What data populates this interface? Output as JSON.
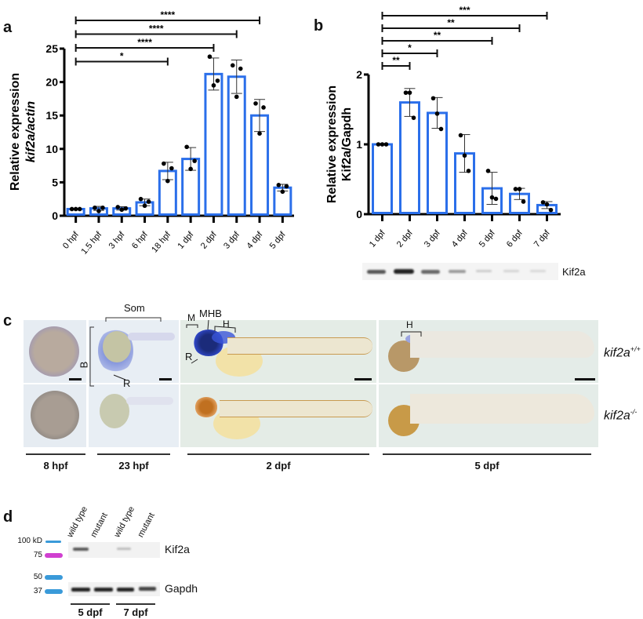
{
  "figure": {
    "panel_a": {
      "letter": "a"
    },
    "panel_b": {
      "letter": "b",
      "blot_label": "Kif2a"
    },
    "panel_c": {
      "letter": "c",
      "annotations": {
        "som": "Som",
        "b": "B",
        "r1": "R",
        "mhb": "MHB",
        "m": "M",
        "h1": "H",
        "r2": "R",
        "h2": "H"
      },
      "genotypes": {
        "wt_base": "kif2a",
        "wt_sup": "+/+",
        "mut_base": "kif2a",
        "mut_sup": "-/-"
      },
      "ages": [
        "8 hpf",
        "23 hpf",
        "2 dpf",
        "5 dpf"
      ]
    },
    "panel_d": {
      "letter": "d",
      "lanes": [
        "wild type",
        "mutant",
        "wild type",
        "mutant"
      ],
      "markers": [
        "100 kD",
        "75",
        "50",
        "37"
      ],
      "marker_colors": [
        "#3a9ad9",
        "#d040d0",
        "#3a9ad9",
        "#3a9ad9"
      ],
      "bands": [
        "Kif2a",
        "Gapdh"
      ],
      "ages": [
        "5 dpf",
        "7 dpf"
      ]
    }
  },
  "chart_data": [
    {
      "type": "bar",
      "panel": "a",
      "ylabel_line1": "Relative expression",
      "ylabel_line2": "kif2a/actin",
      "categories": [
        "0 hpf",
        "1.5 hpf",
        "3 hpf",
        "6 hpf",
        "18 hpf",
        "1 dpf",
        "2 dpf",
        "3 dpf",
        "4 dpf",
        "5 dpf"
      ],
      "values": [
        1.0,
        1.1,
        1.1,
        2.0,
        6.7,
        8.5,
        21.2,
        20.8,
        15.0,
        4.2
      ],
      "error": [
        0.05,
        0.3,
        0.25,
        0.5,
        1.3,
        1.7,
        2.4,
        2.5,
        2.4,
        0.5
      ],
      "points": [
        [
          1.0,
          1.0,
          1.0
        ],
        [
          1.2,
          0.7,
          1.2
        ],
        [
          1.3,
          0.9,
          1.1
        ],
        [
          2.5,
          1.5,
          2.1
        ],
        [
          7.8,
          5.2,
          7.1
        ],
        [
          10.3,
          7.0,
          8.2
        ],
        [
          23.8,
          19.5,
          20.2
        ],
        [
          22.5,
          17.8,
          22.0
        ],
        [
          16.8,
          12.3,
          16.2
        ],
        [
          4.6,
          3.6,
          4.4
        ]
      ],
      "ylim": [
        0,
        25
      ],
      "yticks": [
        0,
        5,
        10,
        15,
        20,
        25
      ],
      "color": "#2b6fea",
      "significance": [
        {
          "from": "0 hpf",
          "to": "18 hpf",
          "label": "*"
        },
        {
          "from": "0 hpf",
          "to": "2 dpf",
          "label": "****"
        },
        {
          "from": "0 hpf",
          "to": "3 dpf",
          "label": "****"
        },
        {
          "from": "0 hpf",
          "to": "4 dpf",
          "label": "****"
        }
      ]
    },
    {
      "type": "bar",
      "panel": "b",
      "ylabel_line1": "Relative expression",
      "ylabel_line2": "Kif2a/Gapdh",
      "categories": [
        "1 dpf",
        "2 dpf",
        "3 dpf",
        "4 dpf",
        "5 dpf",
        "6 dpf",
        "7 dpf"
      ],
      "values": [
        1.0,
        1.6,
        1.45,
        0.87,
        0.37,
        0.29,
        0.13
      ],
      "error": [
        0.0,
        0.2,
        0.22,
        0.27,
        0.23,
        0.08,
        0.05
      ],
      "points": [
        [
          1.0,
          1.0,
          1.0
        ],
        [
          1.74,
          1.74,
          1.38
        ],
        [
          1.66,
          1.44,
          1.22
        ],
        [
          1.13,
          0.84,
          0.62
        ],
        [
          0.62,
          0.24,
          0.22
        ],
        [
          0.36,
          0.36,
          0.18
        ],
        [
          0.17,
          0.14,
          0.06
        ]
      ],
      "ylim": [
        0,
        2
      ],
      "yticks": [
        0,
        1,
        2
      ],
      "color": "#2b6fea",
      "significance": [
        {
          "from": "1 dpf",
          "to": "2 dpf",
          "label": "**"
        },
        {
          "from": "1 dpf",
          "to": "3 dpf",
          "label": "*"
        },
        {
          "from": "1 dpf",
          "to": "5 dpf",
          "label": "**"
        },
        {
          "from": "1 dpf",
          "to": "6 dpf",
          "label": "**"
        },
        {
          "from": "1 dpf",
          "to": "7 dpf",
          "label": "***"
        }
      ]
    }
  ]
}
